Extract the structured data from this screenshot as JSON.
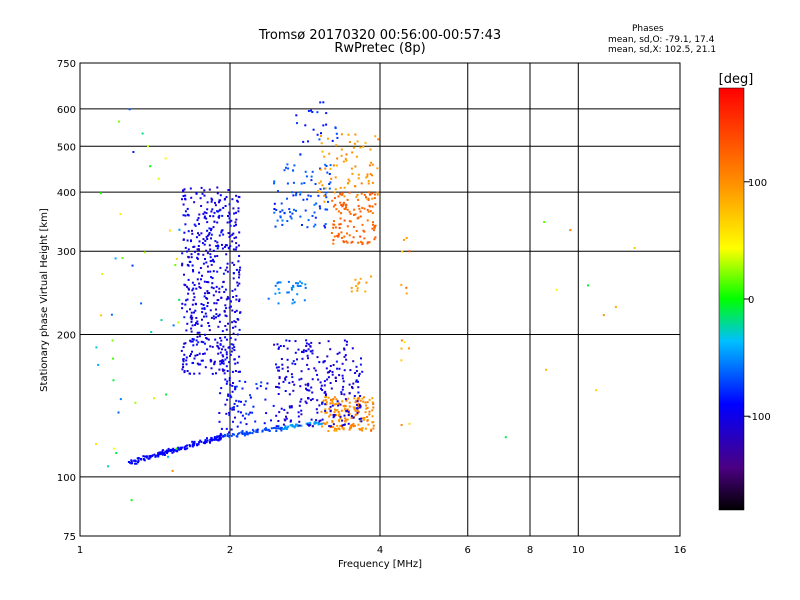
{
  "chart_data": {
    "type": "scatter",
    "title": "Tromsø 20170320 00:56:00-00:57:43",
    "subtitle": "RwPretec (8p)",
    "xlabel": "Frequency [MHz]",
    "ylabel": "Stationary phase Virtual Height [km]",
    "x_scale": "log",
    "y_scale": "log",
    "xlim": [
      1,
      16
    ],
    "ylim": [
      75,
      750
    ],
    "x_ticks": [
      {
        "v": 1,
        "label": "1"
      },
      {
        "v": 2,
        "label": "2"
      },
      {
        "v": 4,
        "label": "4"
      },
      {
        "v": 6,
        "label": "6"
      },
      {
        "v": 8,
        "label": "8"
      },
      {
        "v": 10,
        "label": "10"
      },
      {
        "v": 16,
        "label": "16"
      }
    ],
    "y_ticks": [
      {
        "v": 75,
        "label": "75"
      },
      {
        "v": 100,
        "label": "100"
      },
      {
        "v": 200,
        "label": "200"
      },
      {
        "v": 300,
        "label": "300"
      },
      {
        "v": 400,
        "label": "400"
      },
      {
        "v": 500,
        "label": "500"
      },
      {
        "v": 600,
        "label": "600"
      },
      {
        "v": 750,
        "label": "750"
      }
    ],
    "grid": true,
    "colorbar": {
      "title": "[deg]",
      "range": [
        -180,
        180
      ],
      "ticks": [
        {
          "v": 100,
          "label": "100"
        },
        {
          "v": 0,
          "label": "0"
        },
        {
          "v": -100,
          "label": "-100"
        }
      ]
    },
    "stats": {
      "title": "Phases",
      "o_line": "mean, sd,O: -79.1, 17.4",
      "x_line": "mean, sd,X: 102.5, 21.1"
    },
    "series": [
      {
        "clusters": [
          {
            "x": [
              1.25,
              1.95
            ],
            "y": [
              107,
              122
            ],
            "phase": -90,
            "n": 150,
            "jx": 0.01,
            "jy": 0.02,
            "pc": 0.09,
            "line": true
          },
          {
            "x": [
              1.95,
              2.55
            ],
            "y": [
              122,
              127
            ],
            "phase": -70,
            "n": 60,
            "jx": 0.01,
            "jy": 0.015,
            "pc": 0.08,
            "line": true
          },
          {
            "x": [
              2.55,
              3.05
            ],
            "y": [
              127,
              130
            ],
            "phase": -45,
            "n": 40,
            "jx": 0.01,
            "jy": 0.015,
            "pc": 0.1,
            "line": true
          },
          {
            "x": [
              3.05,
              3.9
            ],
            "y": [
              125,
              148
            ],
            "phase": 100,
            "n": 160,
            "jx": 0,
            "jy": 0,
            "pc": 25,
            "line": false
          },
          {
            "x": [
              2.45,
              3.7
            ],
            "y": [
              128,
              195
            ],
            "phase": -105,
            "n": 260,
            "jx": 0,
            "jy": 0,
            "pc": 30,
            "line": false
          },
          {
            "x": [
              2.0,
              2.45
            ],
            "y": [
              125,
              160
            ],
            "phase": -85,
            "n": 40,
            "jx": 0,
            "jy": 0,
            "pc": 25,
            "line": false
          },
          {
            "x": [
              1.6,
              2.1
            ],
            "y": [
              165,
              410
            ],
            "phase": -100,
            "n": 500,
            "jx": 0,
            "jy": 0,
            "pc": 25,
            "line": false
          },
          {
            "x": [
              1.9,
              2.05
            ],
            "y": [
              120,
              200
            ],
            "phase": -95,
            "n": 60,
            "jx": 0,
            "jy": 0,
            "pc": 25,
            "line": false
          },
          {
            "x": [
              2.45,
              3.2
            ],
            "y": [
              335,
              460
            ],
            "phase": -70,
            "n": 90,
            "jx": 0,
            "jy": 0,
            "pc": 25,
            "line": false
          },
          {
            "x": [
              2.7,
              3.3
            ],
            "y": [
              480,
              620
            ],
            "phase": -80,
            "n": 25,
            "jx": 0,
            "jy": 0,
            "pc": 25,
            "line": false
          },
          {
            "x": [
              3.2,
              3.95
            ],
            "y": [
              310,
              400
            ],
            "phase": 125,
            "n": 120,
            "jx": 0,
            "jy": 0,
            "pc": 20,
            "line": false
          },
          {
            "x": [
              3.0,
              4.0
            ],
            "y": [
              380,
              530
            ],
            "phase": 95,
            "n": 80,
            "jx": 0,
            "jy": 0,
            "pc": 25,
            "line": false
          },
          {
            "x": [
              2.35,
              2.85
            ],
            "y": [
              232,
              260
            ],
            "phase": -55,
            "n": 30,
            "jx": 0,
            "jy": 0,
            "pc": 10,
            "line": false
          },
          {
            "x": [
              3.5,
              3.9
            ],
            "y": [
              245,
              268
            ],
            "phase": 90,
            "n": 12,
            "jx": 0,
            "jy": 0,
            "pc": 15,
            "line": false
          },
          {
            "x": [
              1.05,
              1.6
            ],
            "y": [
              85,
              600
            ],
            "phase": 0,
            "n": 45,
            "jx": 0,
            "jy": 0,
            "pc": 140,
            "line": false
          },
          {
            "x": [
              4.4,
              4.6
            ],
            "y": [
              125,
              330
            ],
            "phase": 90,
            "n": 14,
            "jx": 0,
            "jy": 0,
            "pc": 50,
            "line": false
          },
          {
            "x": [
              6.0,
              13.0
            ],
            "y": [
              80,
              430
            ],
            "phase": 60,
            "n": 10,
            "jx": 0,
            "jy": 0,
            "pc": 170,
            "line": false
          }
        ]
      }
    ]
  }
}
